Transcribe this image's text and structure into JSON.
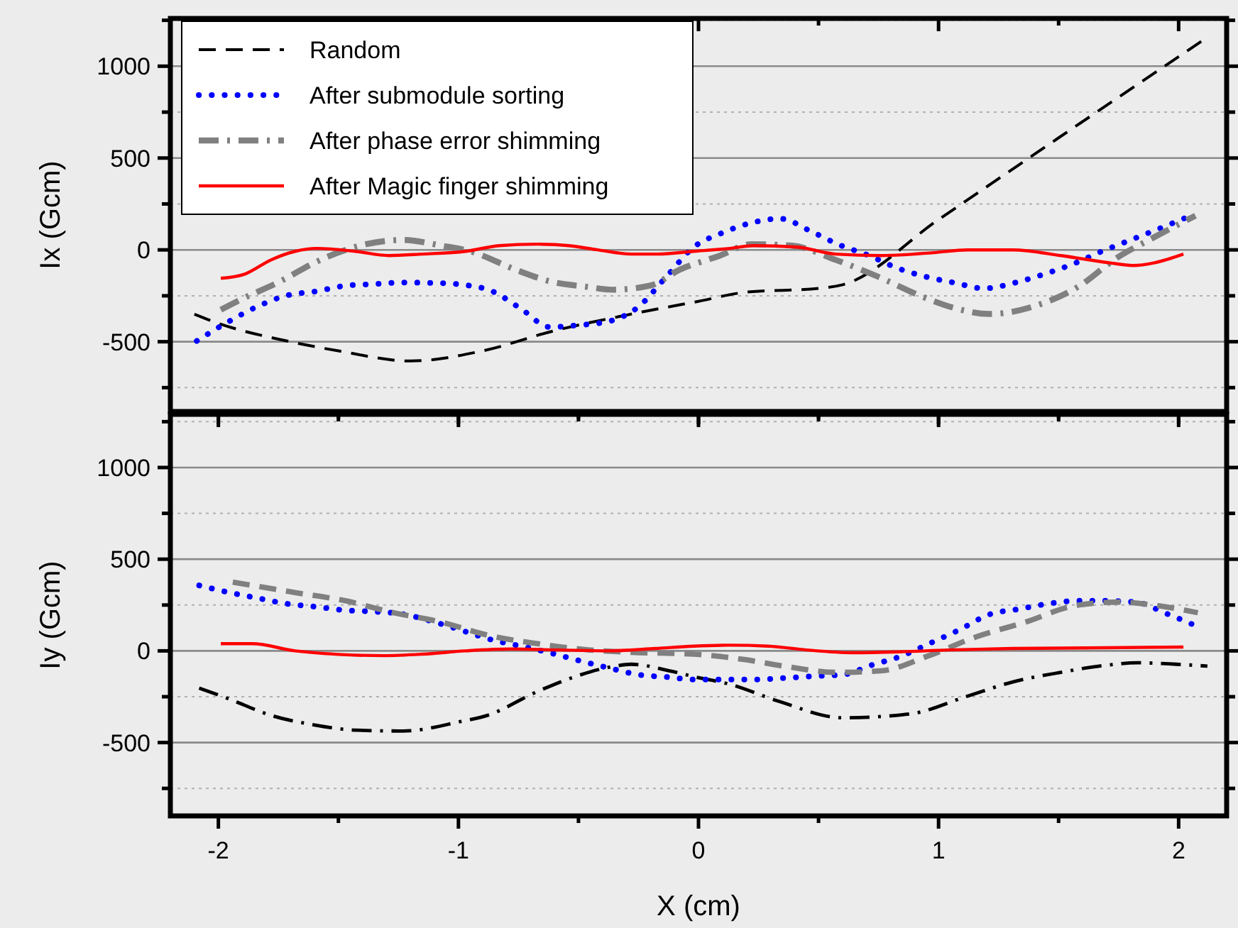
{
  "chart_data": [
    {
      "type": "line",
      "ylabel": "Ix (Gcm)",
      "xlim": [
        -2.2,
        2.2
      ],
      "ylim": [
        -880,
        1260
      ],
      "xticks": [
        -2,
        {
          "value": -1.5,
          "label": null
        },
        -1,
        {
          "value": -0.5,
          "label": null
        },
        0,
        {
          "value": 0.5,
          "label": null
        },
        1,
        {
          "value": 1.5,
          "label": null
        },
        2
      ],
      "yticks": [
        {
          "value": -750,
          "label": null
        },
        -500,
        {
          "value": -250,
          "label": null
        },
        0,
        {
          "value": 250,
          "label": null
        },
        500,
        {
          "value": 750,
          "label": null
        },
        1000,
        {
          "value": 1250,
          "label": null
        }
      ],
      "tick_labels": "y",
      "grid": "y",
      "legend": "top left",
      "series": [
        {
          "name": "Random",
          "color": "#000000",
          "line_style": "dashed",
          "x": [
            -2.1,
            -2.0,
            -1.7,
            -1.5,
            -1.2,
            -0.9,
            -0.6,
            -0.3,
            0,
            0.2,
            0.5,
            0.6,
            1.0,
            1.5,
            2.1
          ],
          "values": [
            -350,
            -400,
            -500,
            -550,
            -605,
            -550,
            -440,
            -355,
            -280,
            -230,
            -210,
            -190,
            165,
            610,
            1140
          ]
        },
        {
          "name": "After submodule sorting",
          "color": "#0000ff",
          "line_style": "dotted",
          "x": [
            -2.09,
            -1.97,
            -1.84,
            -1.72,
            -1.59,
            -1.47,
            -1.35,
            -1.23,
            -1.1,
            -0.98,
            -0.86,
            -0.74,
            -0.62,
            -0.5,
            -0.37,
            -0.25,
            -0.14,
            -0.02,
            0.1,
            0.22,
            0.34,
            0.47,
            0.58,
            0.71,
            0.83,
            0.95,
            1.07,
            1.19,
            1.32,
            1.44,
            1.56,
            1.68,
            1.8,
            1.92,
            2.05
          ],
          "values": [
            -496,
            -400,
            -310,
            -250,
            -225,
            -195,
            -186,
            -178,
            -180,
            -190,
            -225,
            -320,
            -420,
            -410,
            -388,
            -310,
            -155,
            15,
            93,
            147,
            170,
            100,
            31,
            -31,
            -100,
            -147,
            -180,
            -210,
            -178,
            -132,
            -77,
            -8,
            54,
            116,
            186
          ]
        },
        {
          "name": "After phase error shimming",
          "color": "#808080",
          "line_style": "dashdot",
          "x": [
            -1.99,
            -1.92,
            -1.73,
            -1.6,
            -1.41,
            -1.23,
            -1.07,
            -0.95,
            -0.76,
            -0.62,
            -0.46,
            -0.36,
            -0.2,
            -0.08,
            0.09,
            0.22,
            0.39,
            0.57,
            0.75,
            0.92,
            1.07,
            1.21,
            1.41,
            1.58,
            1.74,
            1.9,
            2.07
          ],
          "values": [
            -326,
            -279,
            -163,
            -70,
            23,
            54,
            23,
            -8,
            -109,
            -171,
            -202,
            -217,
            -194,
            -109,
            -31,
            31,
            23,
            -54,
            -147,
            -248,
            -318,
            -349,
            -302,
            -202,
            -46,
            70,
            186
          ]
        },
        {
          "name": "After Magic finger shimming",
          "color": "#ff0000",
          "line_style": "solid",
          "x": [
            -1.99,
            -1.89,
            -1.78,
            -1.68,
            -1.59,
            -1.43,
            -1.29,
            -1.15,
            -0.97,
            -0.83,
            -0.67,
            -0.54,
            -0.42,
            -0.28,
            -0.17,
            -0.02,
            0.13,
            0.23,
            0.41,
            0.57,
            0.76,
            0.98,
            1.12,
            1.31,
            1.51,
            1.71,
            1.81,
            1.9,
            2.02
          ],
          "values": [
            -155,
            -132,
            -54,
            -8,
            8,
            -8,
            -31,
            -23,
            -8,
            23,
            31,
            23,
            0,
            -23,
            -23,
            -8,
            8,
            23,
            15,
            -23,
            -31,
            -15,
            0,
            0,
            -31,
            -70,
            -85,
            -70,
            -23
          ]
        }
      ]
    },
    {
      "type": "line",
      "xlabel": "X (cm)",
      "ylabel": "Iy (Gcm)",
      "xlim": [
        -2.2,
        2.2
      ],
      "ylim": [
        -900,
        1290
      ],
      "xticks": [
        -2,
        {
          "value": -1.5,
          "label": null
        },
        -1,
        {
          "value": -0.5,
          "label": null
        },
        0,
        {
          "value": 0.5,
          "label": null
        },
        1,
        {
          "value": 1.5,
          "label": null
        },
        2
      ],
      "yticks": [
        {
          "value": -750,
          "label": null
        },
        -500,
        {
          "value": -250,
          "label": null
        },
        0,
        {
          "value": 250,
          "label": null
        },
        500,
        {
          "value": 750,
          "label": null
        },
        1000,
        {
          "value": 1250,
          "label": null
        }
      ],
      "grid": "y",
      "series": [
        {
          "color": "#000000",
          "line_style": "dashdot",
          "x": [
            -2.08,
            -1.96,
            -1.78,
            -1.6,
            -1.43,
            -1.23,
            -0.99,
            -0.88,
            -0.67,
            -0.52,
            -0.36,
            -0.28,
            -0.12,
            -0.01,
            0.13,
            0.33,
            0.6,
            0.88,
            1.12,
            1.31,
            1.51,
            1.67,
            1.83,
            1.99,
            2.12
          ],
          "values": [
            -203,
            -260,
            -352,
            -404,
            -432,
            -437,
            -385,
            -352,
            -221,
            -143,
            -86,
            -73,
            -109,
            -143,
            -182,
            -273,
            -365,
            -344,
            -247,
            -169,
            -117,
            -83,
            -65,
            -73,
            -83
          ]
        },
        {
          "color": "#0000ff",
          "line_style": "dotted",
          "x": [
            -2.08,
            -1.96,
            -1.83,
            -1.72,
            -1.59,
            -1.47,
            -1.35,
            -1.23,
            -1.11,
            -0.98,
            -0.86,
            -0.74,
            -0.62,
            -0.5,
            -0.37,
            -0.25,
            -0.13,
            -0.02,
            0.12,
            0.24,
            0.36,
            0.48,
            0.6,
            0.72,
            0.85,
            0.96,
            1.09,
            1.21,
            1.34,
            1.46,
            1.58,
            1.7,
            1.82,
            1.95,
            2.07
          ],
          "values": [
            357,
            320,
            286,
            258,
            240,
            221,
            214,
            200,
            161,
            109,
            60,
            26,
            -10,
            -52,
            -94,
            -130,
            -143,
            -156,
            -156,
            -156,
            -148,
            -138,
            -130,
            -78,
            -26,
            39,
            117,
            198,
            229,
            258,
            273,
            273,
            266,
            203,
            138
          ]
        },
        {
          "color": "#808080",
          "line_style": "dashed",
          "x": [
            -1.94,
            -1.68,
            -1.47,
            -1.27,
            -1.07,
            -0.87,
            -0.67,
            -0.48,
            -0.28,
            -0.02,
            0.19,
            0.37,
            0.57,
            0.76,
            0.96,
            1.16,
            1.36,
            1.57,
            1.75,
            1.91,
            2.08
          ],
          "values": [
            375,
            318,
            273,
            208,
            156,
            83,
            39,
            8,
            -8,
            -18,
            -47,
            -86,
            -117,
            -109,
            -26,
            78,
            156,
            247,
            266,
            247,
            208
          ]
        },
        {
          "color": "#ff0000",
          "line_style": "solid",
          "x": [
            -1.99,
            -1.86,
            -1.68,
            -1.47,
            -1.31,
            -1.15,
            -0.97,
            -0.78,
            -0.58,
            -0.38,
            -0.18,
            -0.02,
            0.13,
            0.29,
            0.45,
            0.64,
            0.84,
            1.04,
            1.31,
            1.61,
            2.02
          ],
          "values": [
            39,
            39,
            0,
            -21,
            -26,
            -18,
            0,
            10,
            5,
            0,
            13,
            26,
            31,
            26,
            5,
            -10,
            -5,
            5,
            13,
            16,
            21
          ]
        }
      ]
    }
  ]
}
